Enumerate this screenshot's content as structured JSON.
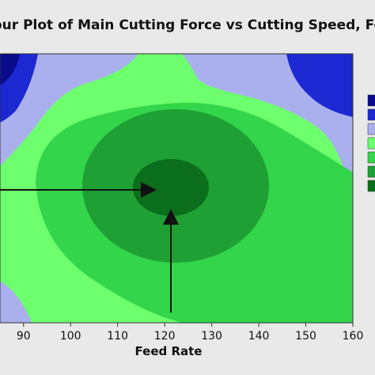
{
  "title": "our Plot of Main Cutting Force vs Cutting Speed, Feed",
  "chart_data": {
    "type": "contour",
    "xlabel": "Feed Rate",
    "x_ticks": [
      90,
      100,
      110,
      120,
      130,
      140,
      150,
      160
    ],
    "xlim": [
      85,
      160
    ],
    "levels": [
      {
        "band": 1,
        "color": "#0a0a8c"
      },
      {
        "band": 2,
        "color": "#1c28d2"
      },
      {
        "band": 3,
        "color": "#aab0ee"
      },
      {
        "band": 4,
        "color": "#6dff6d"
      },
      {
        "band": 5,
        "color": "#33d54a"
      },
      {
        "band": 6,
        "color": "#1fa034"
      },
      {
        "band": 7,
        "color": "#0b6e1c"
      }
    ],
    "annotations": [
      {
        "type": "arrow",
        "from": "left",
        "target": "optimum region"
      },
      {
        "type": "arrow",
        "from": "bottom",
        "target": "optimum region"
      }
    ],
    "legend_position": "right",
    "grid": false
  }
}
